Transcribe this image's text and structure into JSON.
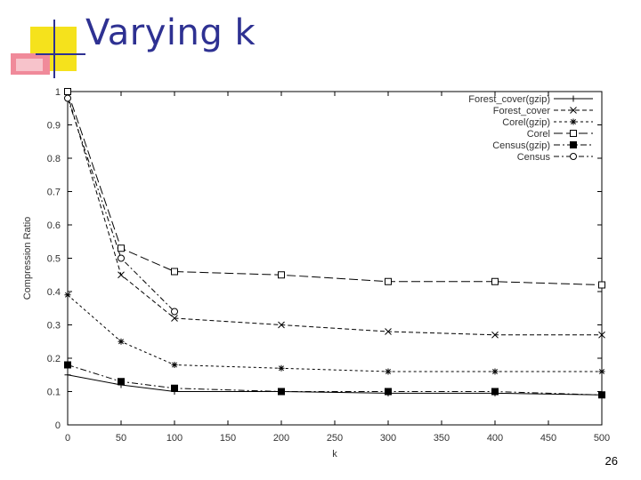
{
  "slide": {
    "title": "Varying k",
    "page_number": "26"
  },
  "colors": {
    "title": "#2e3192",
    "accent_yellow": "#f5e21c",
    "accent_blue": "#2e3192",
    "accent_pink": "#f08a9a",
    "plot_ink": "#000000"
  },
  "chart_data": {
    "type": "line",
    "title": "",
    "xlabel": "k",
    "ylabel": "Compression Ratio",
    "xlim": [
      0,
      500
    ],
    "ylim": [
      0,
      1
    ],
    "x_ticks": [
      0,
      50,
      100,
      150,
      200,
      250,
      300,
      350,
      400,
      450,
      500
    ],
    "y_ticks": [
      0,
      0.1,
      0.2,
      0.3,
      0.4,
      0.5,
      0.6,
      0.7,
      0.8,
      0.9,
      1
    ],
    "y_tick_labels": [
      "0",
      "0.1",
      "0.2",
      "0.3",
      "0.4",
      "0.5",
      "0.6",
      "0.7",
      "0.8",
      "0.9",
      "1"
    ],
    "grid": false,
    "legend_position": "top-right",
    "series": [
      {
        "name": "Forest_cover(gzip)",
        "marker": "plus",
        "dash": "",
        "x": [
          0,
          50,
          100,
          200,
          300,
          400,
          500
        ],
        "y": [
          0.15,
          0.12,
          0.1,
          0.1,
          0.095,
          0.095,
          0.09
        ]
      },
      {
        "name": "Forest_cover",
        "marker": "x",
        "dash": "5,3",
        "x": [
          0,
          50,
          100,
          200,
          300,
          400,
          500
        ],
        "y": [
          0.99,
          0.45,
          0.32,
          0.3,
          0.28,
          0.27,
          0.27
        ]
      },
      {
        "name": "Corel(gzip)",
        "marker": "star",
        "dash": "3,3",
        "x": [
          0,
          50,
          100,
          200,
          300,
          400,
          500
        ],
        "y": [
          0.39,
          0.25,
          0.18,
          0.17,
          0.16,
          0.16,
          0.16
        ]
      },
      {
        "name": "Corel",
        "marker": "square-open",
        "dash": "10,4",
        "x": [
          0,
          50,
          100,
          200,
          300,
          400,
          500
        ],
        "y": [
          1.0,
          0.53,
          0.46,
          0.45,
          0.43,
          0.43,
          0.42
        ]
      },
      {
        "name": "Census(gzip)",
        "marker": "square-filled",
        "dash": "7,3,2,3",
        "x": [
          0,
          50,
          100,
          200,
          300,
          400,
          500
        ],
        "y": [
          0.18,
          0.13,
          0.11,
          0.1,
          0.1,
          0.1,
          0.09
        ]
      },
      {
        "name": "Census",
        "marker": "circle-open",
        "dash": "6,3,2,3",
        "x": [
          0,
          50,
          100
        ],
        "y": [
          0.98,
          0.5,
          0.34
        ]
      }
    ]
  }
}
